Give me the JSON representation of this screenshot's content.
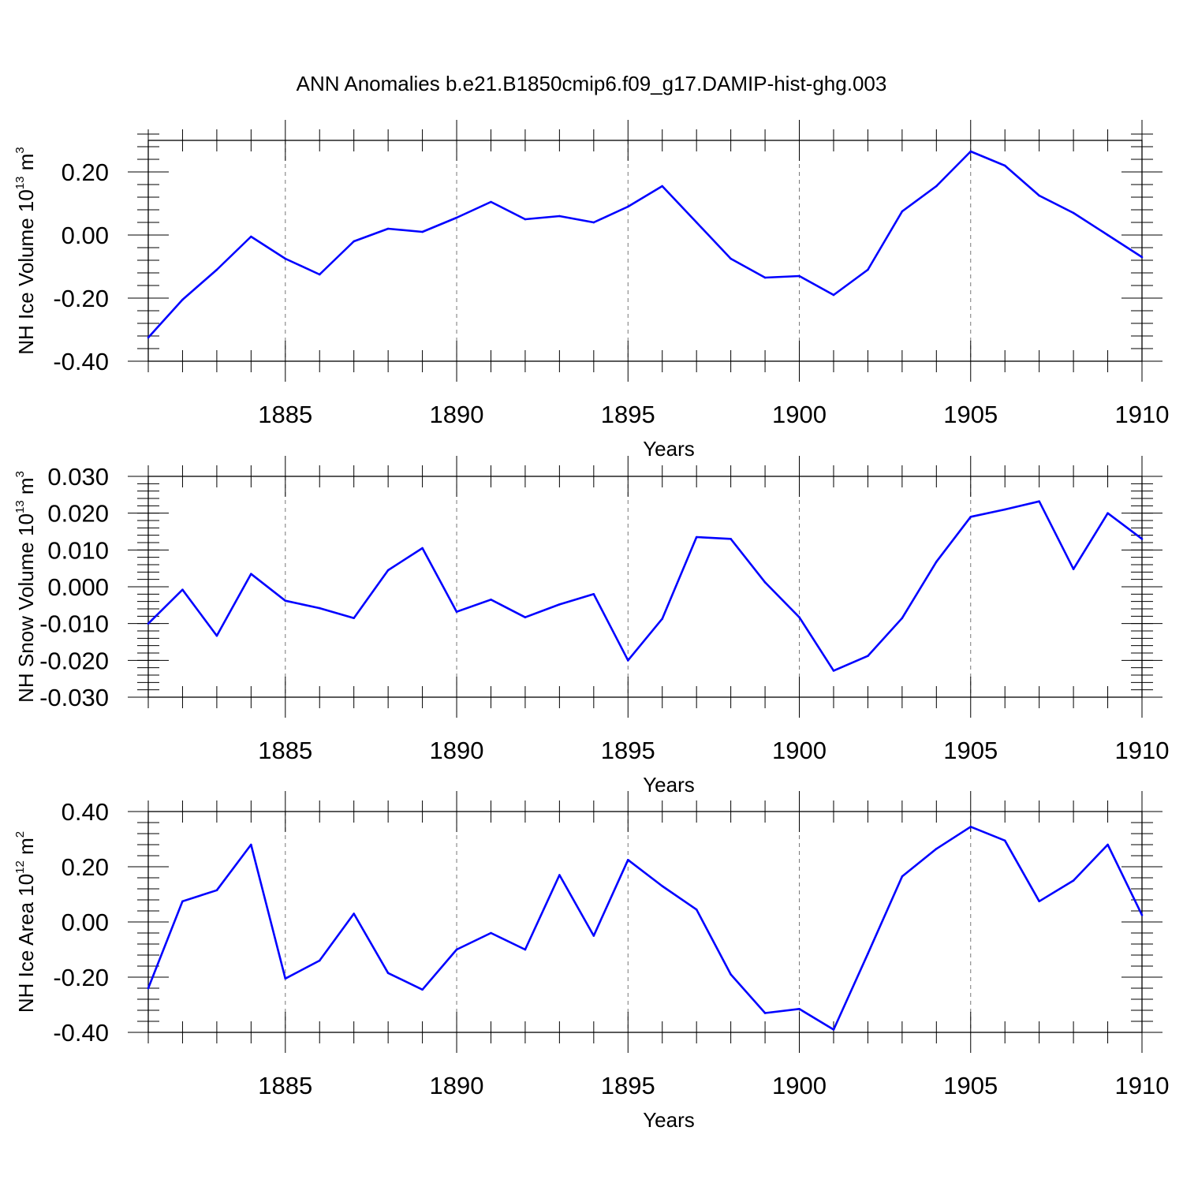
{
  "chart_data": {
    "title": "ANN Anomalies b.e21.B1850cmip6.f09_g17.DAMIP-hist-ghg.003",
    "line_color": "#0000ff",
    "panels": [
      {
        "type": "line",
        "ylabel_main": "NH Ice Volume 10",
        "ylabel_exp": "13",
        "ylabel_unit": " m",
        "ylabel_unit_exp": "3",
        "xlabel": "Years",
        "xlim": [
          1881,
          1910
        ],
        "ylim": [
          -0.4,
          0.3
        ],
        "yticks": [
          -0.4,
          -0.2,
          0.0,
          0.2
        ],
        "ytick_labels": [
          "-0.40",
          "-0.20",
          "0.00",
          "0.20"
        ],
        "yminor_step": 0.04,
        "x": [
          1881,
          1882,
          1883,
          1884,
          1885,
          1886,
          1887,
          1888,
          1889,
          1890,
          1891,
          1892,
          1893,
          1894,
          1895,
          1896,
          1897,
          1898,
          1899,
          1900,
          1901,
          1902,
          1903,
          1904,
          1905,
          1906,
          1907,
          1908,
          1909,
          1910
        ],
        "values": [
          -0.325,
          -0.205,
          -0.11,
          -0.005,
          -0.075,
          -0.125,
          -0.02,
          0.02,
          0.01,
          0.055,
          0.105,
          0.05,
          0.06,
          0.04,
          0.09,
          0.155,
          0.04,
          -0.075,
          -0.135,
          -0.13,
          -0.19,
          -0.11,
          0.075,
          0.155,
          0.265,
          0.22,
          0.125,
          0.07,
          0.0,
          -0.07
        ]
      },
      {
        "type": "line",
        "ylabel_main": "NH Snow Volume 10",
        "ylabel_exp": "13",
        "ylabel_unit": " m",
        "ylabel_unit_exp": "3",
        "xlabel": "Years",
        "xlim": [
          1881,
          1910
        ],
        "ylim": [
          -0.03,
          0.03
        ],
        "yticks": [
          -0.03,
          -0.02,
          -0.01,
          0.0,
          0.01,
          0.02,
          0.03
        ],
        "ytick_labels": [
          "-0.030",
          "-0.020",
          "-0.010",
          "0.000",
          "0.010",
          "0.020",
          "0.030"
        ],
        "yminor_step": 0.002,
        "x": [
          1881,
          1882,
          1883,
          1884,
          1885,
          1886,
          1887,
          1888,
          1889,
          1890,
          1891,
          1892,
          1893,
          1894,
          1895,
          1896,
          1897,
          1898,
          1899,
          1900,
          1901,
          1902,
          1903,
          1904,
          1905,
          1906,
          1907,
          1908,
          1909,
          1910
        ],
        "values": [
          -0.01,
          -0.0008,
          -0.0133,
          0.0035,
          -0.0038,
          -0.0058,
          -0.0085,
          0.0045,
          0.0105,
          -0.0068,
          -0.0035,
          -0.0083,
          -0.0048,
          -0.002,
          -0.02,
          -0.0087,
          0.0135,
          0.013,
          0.0012,
          -0.0083,
          -0.0228,
          -0.0188,
          -0.0085,
          0.0068,
          0.019,
          0.021,
          0.0232,
          0.0048,
          0.02,
          0.013
        ]
      },
      {
        "type": "line",
        "ylabel_main": "NH Ice Area 10",
        "ylabel_exp": "12",
        "ylabel_unit": " m",
        "ylabel_unit_exp": "2",
        "xlabel": "Years",
        "xlim": [
          1881,
          1910
        ],
        "ylim": [
          -0.4,
          0.4
        ],
        "yticks": [
          -0.4,
          -0.2,
          0.0,
          0.2,
          0.4
        ],
        "ytick_labels": [
          "-0.40",
          "-0.20",
          "0.00",
          "0.20",
          "0.40"
        ],
        "yminor_step": 0.04,
        "x": [
          1881,
          1882,
          1883,
          1884,
          1885,
          1886,
          1887,
          1888,
          1889,
          1890,
          1891,
          1892,
          1893,
          1894,
          1895,
          1896,
          1897,
          1898,
          1899,
          1900,
          1901,
          1902,
          1903,
          1904,
          1905,
          1906,
          1907,
          1908,
          1909,
          1910
        ],
        "values": [
          -0.24,
          0.075,
          0.115,
          0.28,
          -0.205,
          -0.14,
          0.03,
          -0.185,
          -0.245,
          -0.1,
          -0.04,
          -0.1,
          0.17,
          -0.05,
          0.225,
          0.13,
          0.045,
          -0.19,
          -0.33,
          -0.315,
          -0.39,
          -0.115,
          0.165,
          0.265,
          0.345,
          0.295,
          0.075,
          0.15,
          0.28,
          0.025
        ]
      }
    ],
    "xticks": [
      1885,
      1890,
      1895,
      1900,
      1905,
      1910
    ],
    "xtick_labels": [
      "1885",
      "1890",
      "1895",
      "1900",
      "1905",
      "1910"
    ]
  }
}
